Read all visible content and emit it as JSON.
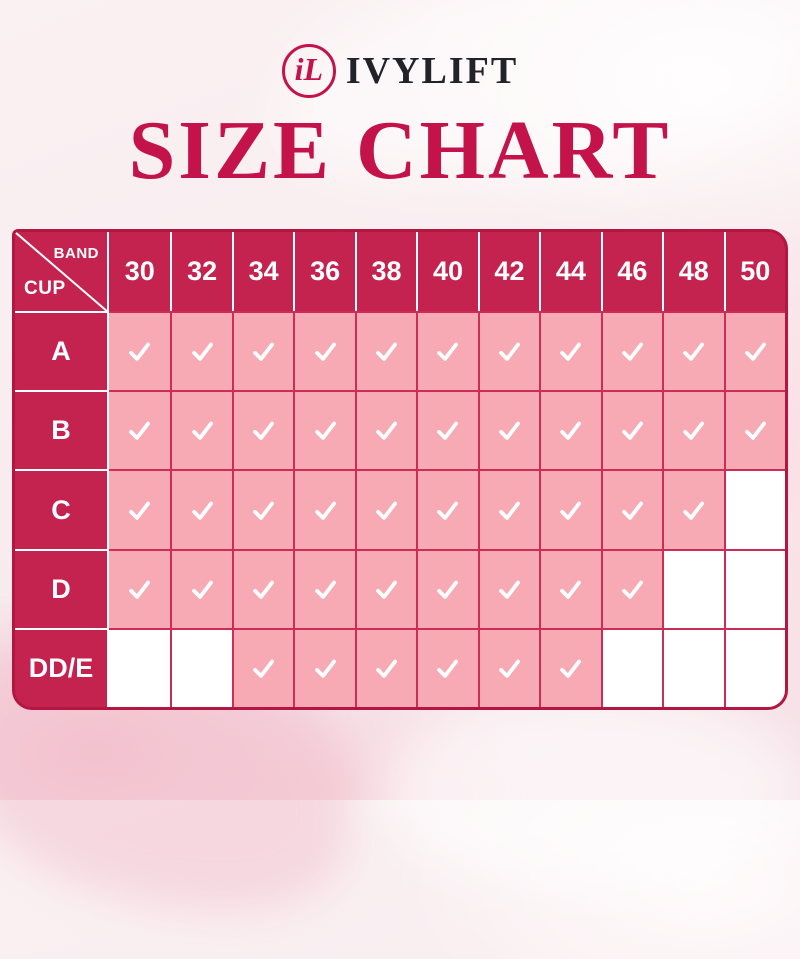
{
  "brand": {
    "logo_monogram": "iL",
    "name": "IVYLIFT"
  },
  "title": "SIZE CHART",
  "size_table": {
    "corner": {
      "top_right_label": "BAND",
      "bottom_left_label": "CUP"
    },
    "band_sizes": [
      "30",
      "32",
      "34",
      "36",
      "38",
      "40",
      "42",
      "44",
      "46",
      "48",
      "50"
    ],
    "cup_rows": [
      {
        "cup": "A",
        "available": [
          true,
          true,
          true,
          true,
          true,
          true,
          true,
          true,
          true,
          true,
          true
        ]
      },
      {
        "cup": "B",
        "available": [
          true,
          true,
          true,
          true,
          true,
          true,
          true,
          true,
          true,
          true,
          true
        ]
      },
      {
        "cup": "C",
        "available": [
          true,
          true,
          true,
          true,
          true,
          true,
          true,
          true,
          true,
          true,
          false
        ]
      },
      {
        "cup": "D",
        "available": [
          true,
          true,
          true,
          true,
          true,
          true,
          true,
          true,
          true,
          false,
          false
        ]
      },
      {
        "cup": "DD/E",
        "available": [
          false,
          false,
          true,
          true,
          true,
          true,
          true,
          true,
          false,
          false,
          false
        ]
      }
    ],
    "check_icon": "checkmark"
  },
  "colors": {
    "accent": "#c4124b",
    "header_bg": "#c5234f",
    "cell_pink": "#f7a9b4",
    "grid_line": "#cb2d57",
    "table_border": "#b31741",
    "brand_text": "#212329"
  }
}
